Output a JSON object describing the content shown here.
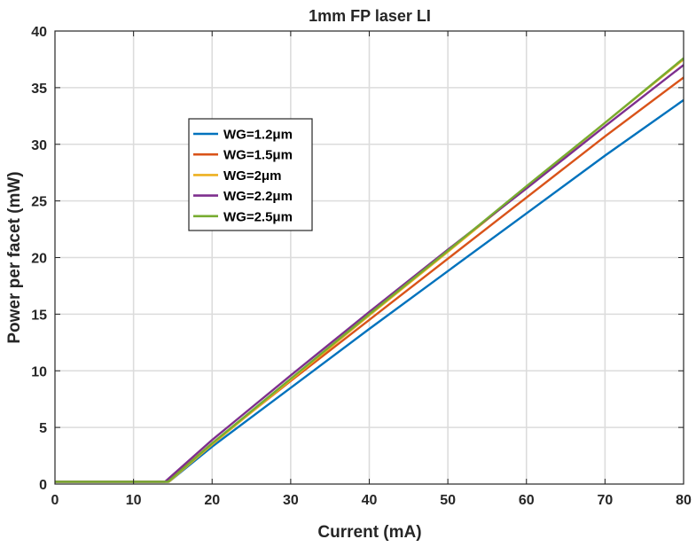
{
  "chart_data": {
    "type": "line",
    "title": "1mm FP laser LI",
    "xlabel": "Current (mA)",
    "ylabel": "Power per facet (mW)",
    "xlim": [
      0,
      80
    ],
    "ylim": [
      0,
      40
    ],
    "xticks": [
      0,
      10,
      20,
      30,
      40,
      50,
      60,
      70,
      80
    ],
    "yticks": [
      0,
      5,
      10,
      15,
      20,
      25,
      30,
      35,
      40
    ],
    "grid": true,
    "legend_position": "upper-left",
    "series": [
      {
        "name": "WG=1.2μm",
        "color": "#0072BD",
        "x": [
          0,
          13.9,
          14.5,
          20,
          30,
          40,
          50,
          60,
          70,
          80
        ],
        "y": [
          0.2,
          0.2,
          0.2,
          3.3,
          8.5,
          13.7,
          18.8,
          23.9,
          29.0,
          33.9
        ]
      },
      {
        "name": "WG=1.5μm",
        "color": "#D95319",
        "x": [
          0,
          13.7,
          14.3,
          20,
          30,
          40,
          50,
          60,
          70,
          80
        ],
        "y": [
          0.2,
          0.2,
          0.2,
          3.6,
          9.1,
          14.5,
          19.9,
          25.3,
          30.7,
          35.9
        ]
      },
      {
        "name": "WG=2μm",
        "color": "#EDB120",
        "x": [
          0,
          13.9,
          14.5,
          20,
          30,
          40,
          50,
          60,
          70,
          80
        ],
        "y": [
          0.2,
          0.2,
          0.2,
          3.5,
          9.2,
          14.9,
          20.5,
          26.2,
          31.9,
          37.5
        ]
      },
      {
        "name": "WG=2.2μm",
        "color": "#7E2F8E",
        "x": [
          0,
          13.4,
          14.0,
          20,
          30,
          40,
          50,
          60,
          70,
          80
        ],
        "y": [
          0.2,
          0.2,
          0.2,
          3.9,
          9.6,
          15.2,
          20.7,
          26.1,
          31.6,
          37.0
        ]
      },
      {
        "name": "WG=2.5μm",
        "color": "#77AC30",
        "x": [
          0,
          13.8,
          14.4,
          20,
          30,
          40,
          50,
          60,
          70,
          80
        ],
        "y": [
          0.2,
          0.2,
          0.2,
          3.6,
          9.3,
          15.0,
          20.6,
          26.3,
          31.9,
          37.6
        ]
      }
    ]
  }
}
